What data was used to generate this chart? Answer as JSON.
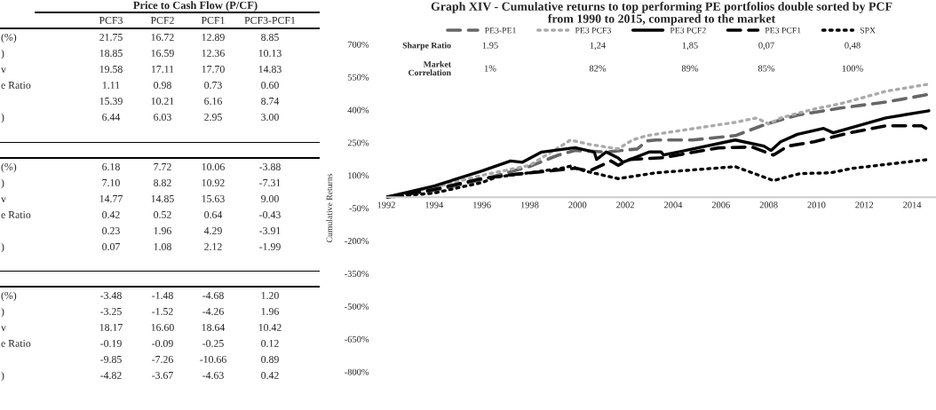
{
  "chart_data": [
    {
      "type": "other",
      "title": "Price to Cash Flow (P/CF)",
      "categories": [
        "PCF3",
        "PCF2",
        "PCF1",
        "PCF3-PCF1"
      ],
      "y_categories": [
        "(%)",
        ")",
        "v",
        "e Ratio",
        null,
        ")"
      ],
      "cell_labels": [
        [
          "21.75",
          "16.72",
          "12.89",
          "8.85"
        ],
        [
          "18.85",
          "16.59",
          "12.36",
          "10.13"
        ],
        [
          "19.58",
          "17.11",
          "17.70",
          "14.83"
        ],
        [
          "1.11",
          "0.98",
          "0.73",
          "0.60"
        ],
        [
          "15.39",
          "10.21",
          "6.16",
          "8.74"
        ],
        [
          "6.44",
          "6.03",
          "2.95",
          "3.00"
        ]
      ]
    },
    {
      "type": "other",
      "y_categories": [
        "(%)",
        ")",
        "v",
        "e Ratio",
        null,
        ")"
      ],
      "cell_labels": [
        [
          "6.18",
          "7.72",
          "10.06",
          "-3.88"
        ],
        [
          "7.10",
          "8.82",
          "10.92",
          "-7.31"
        ],
        [
          "14.77",
          "14.85",
          "15.63",
          "9.00"
        ],
        [
          "0.42",
          "0.52",
          "0.64",
          "-0.43"
        ],
        [
          "0.23",
          "1.96",
          "4.29",
          "-3.91"
        ],
        [
          "0.07",
          "1.08",
          "2.12",
          "-1.99"
        ]
      ]
    },
    {
      "type": "other",
      "y_categories": [
        "(%)",
        ")",
        "v",
        "e Ratio",
        null,
        ")"
      ],
      "cell_labels": [
        [
          "-3.48",
          "-1.48",
          "-4.68",
          "1.20"
        ],
        [
          "-3.25",
          "-1.52",
          "-4.26",
          "1.96"
        ],
        [
          "18.17",
          "16.60",
          "18.64",
          "10.42"
        ],
        [
          "-0.19",
          "-0.09",
          "-0.25",
          "0.12"
        ],
        [
          "-9.85",
          "-7.26",
          "-10.66",
          "0.89"
        ],
        [
          "-4.82",
          "-3.67",
          "-4.63",
          "0.42"
        ]
      ]
    },
    {
      "type": "line",
      "title": "Graph XIV - Cumulative returns to top performing PE portfolios double sorted by PCF\nfrom 1990 to 2015, compared to the market",
      "ylabel": "Cumulative Returns",
      "xlim": [
        1992,
        2015
      ],
      "xticks": [
        1992,
        1994,
        1996,
        1998,
        2000,
        2002,
        2004,
        2006,
        2008,
        2010,
        2012,
        2014
      ],
      "ylim": [
        -800,
        700
      ],
      "yticks": [
        {
          "value": -800,
          "label": "-800%"
        },
        {
          "value": -650,
          "label": "-650%"
        },
        {
          "value": -500,
          "label": "-500%"
        },
        {
          "value": -350,
          "label": "-350%"
        },
        {
          "value": -200,
          "label": "-200%"
        },
        {
          "value": -50,
          "label": "-50%"
        },
        {
          "value": 100,
          "label": "100%"
        },
        {
          "value": 250,
          "label": "250%"
        },
        {
          "value": 400,
          "label": "400%"
        },
        {
          "value": 550,
          "label": "550%"
        },
        {
          "value": 700,
          "label": "700%"
        }
      ],
      "grid": false,
      "legend": "top",
      "annotations": [
        "Sharpe Ratio",
        "1.95",
        "1,24",
        "1,85",
        "0,07",
        "0,48",
        "Market\nCorrelation",
        "1%",
        "82%",
        "89%",
        "85%",
        "100%"
      ],
      "series": [
        {
          "name": "PE3-PE1",
          "color": "#666666",
          "line_style": "dashed",
          "x": [
            1992,
            1994,
            1996,
            1998,
            1999.2,
            1999.9,
            2001.2,
            2002.5,
            2002.9,
            2003.3,
            2004.8,
            2006.6,
            2007.9,
            2009.2,
            2011.0,
            2012.9,
            2014.6
          ],
          "values": [
            0,
            30,
            80,
            141,
            193,
            214,
            207,
            221,
            258,
            262,
            262,
            282,
            335,
            376,
            408,
            436,
            469
          ]
        },
        {
          "name": "PE3 PCF3",
          "color": "#aaaaaa",
          "line_style": "dotted",
          "x": [
            1992,
            1994,
            1996,
            1998,
            1999.6,
            1999.7,
            2000.5,
            2001.7,
            2002.3,
            2002.9,
            2006.6,
            2007.5,
            2008.0,
            2008.5,
            2009.9,
            2011.0,
            2012.9,
            2014.7
          ],
          "values": [
            0,
            45,
            100,
            146,
            254,
            262,
            242,
            221,
            262,
            282,
            343,
            363,
            335,
            363,
            404,
            428,
            485,
            518
          ]
        },
        {
          "name": "PE3 PCF2",
          "color": "#000000",
          "line_style": "solid",
          "x": [
            1992,
            1994,
            1996,
            1997.2,
            1997.7,
            1998.5,
            1999.9,
            2000.7,
            2000.8,
            2001.2,
            2001.7,
            2001.9,
            2003.0,
            2003.5,
            2003.6,
            2006.6,
            2007.8,
            2008.1,
            2008.5,
            2009.2,
            2010.3,
            2010.7,
            2012.9,
            2014.7
          ],
          "values": [
            0,
            51,
            120,
            166,
            160,
            207,
            227,
            207,
            173,
            207,
            180,
            160,
            207,
            207,
            193,
            262,
            234,
            214,
            254,
            288,
            315,
            295,
            363,
            396
          ]
        },
        {
          "name": "PE3 PCF1",
          "color": "#000000",
          "line_style": "dashed",
          "x": [
            1992,
            1994,
            1996,
            1997.4,
            1998.8,
            1999.9,
            2000.5,
            2001.4,
            2001.7,
            2002.2,
            2003.6,
            2004.8,
            2005.9,
            2007.3,
            2008.2,
            2008.8,
            2009.9,
            2011.4,
            2012.9,
            2014.4,
            2014.7
          ],
          "values": [
            0,
            35,
            85,
            105,
            120,
            133,
            120,
            166,
            146,
            173,
            181,
            205,
            226,
            230,
            193,
            234,
            254,
            295,
            327,
            327,
            307
          ]
        },
        {
          "name": "SPX",
          "color": "#000000",
          "line_style": "dotted",
          "x": [
            1992,
            1994,
            1996,
            1996.6,
            1998,
            1999.3,
            1999.7,
            2000.3,
            2001.7,
            2003.3,
            2006.6,
            2008.2,
            2009.3,
            2010.6,
            2011.5,
            2014.7
          ],
          "values": [
            0,
            19,
            67,
            92,
            112,
            132,
            142,
            120,
            85,
            112,
            140,
            76,
            108,
            112,
            132,
            173
          ]
        }
      ]
    }
  ]
}
